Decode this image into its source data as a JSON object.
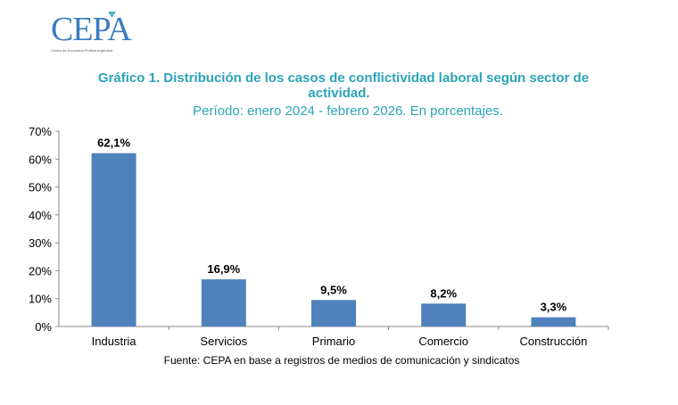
{
  "logo": {
    "name": "CEPA",
    "subtitle": "Centro de Economía Política Argentina"
  },
  "chart_data": {
    "type": "bar",
    "title": "Gráfico 1.  Distribución de los casos de conflictividad laboral según sector de actividad.",
    "title_line1": "Gráfico 1.  Distribución de los casos de conflictividad laboral según sector de",
    "title_line2": "actividad.",
    "subtitle": "Período: enero 2024 - febrero 2026. En porcentajes.",
    "categories": [
      "Industria",
      "Servicios",
      "Primario",
      "Comercio",
      "Construcción"
    ],
    "values": [
      62.1,
      16.9,
      9.5,
      8.2,
      3.3
    ],
    "data_labels": [
      "62,1%",
      "16,9%",
      "9,5%",
      "8,2%",
      "3,3%"
    ],
    "ylim": [
      0,
      70
    ],
    "yticks": [
      "0%",
      "10%",
      "20%",
      "30%",
      "40%",
      "50%",
      "60%",
      "70%"
    ],
    "xlabel": "",
    "ylabel": "",
    "grid": false,
    "bar_color": "#4f81bd",
    "source": "Fuente: CEPA en base a registros de medios de comunicación y sindicatos"
  }
}
